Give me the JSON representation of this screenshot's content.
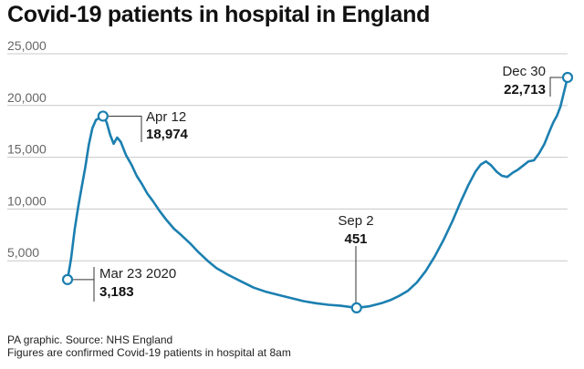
{
  "title": "Covid-19 patients in hospital in England",
  "footer": {
    "source": "PA graphic. Source: NHS England",
    "note": "Figures are confirmed Covid-19 patients in hospital at 8am"
  },
  "colors": {
    "line": "#1b7fb0",
    "grid": "#c8c8c8",
    "axis_text": "#666666",
    "annotation_line": "#333333"
  },
  "chart_data": {
    "type": "line",
    "title": "Covid-19 patients in hospital in England",
    "xlabel": "",
    "ylabel": "",
    "ylim": [
      0,
      25000
    ],
    "yticks": [
      5000,
      10000,
      15000,
      20000,
      25000
    ],
    "ytick_labels": [
      "5,000",
      "10,000",
      "15,000",
      "20,000",
      "25,000"
    ],
    "grid": true,
    "x_start_date": "2020-03-23",
    "x_end_date": "2020-12-30",
    "x": [
      "2020-03-23",
      "2020-03-25",
      "2020-03-27",
      "2020-03-29",
      "2020-03-31",
      "2020-04-02",
      "2020-04-04",
      "2020-04-06",
      "2020-04-08",
      "2020-04-10",
      "2020-04-12",
      "2020-04-14",
      "2020-04-16",
      "2020-04-18",
      "2020-04-20",
      "2020-04-22",
      "2020-04-25",
      "2020-04-28",
      "2020-05-01",
      "2020-05-04",
      "2020-05-07",
      "2020-05-10",
      "2020-05-14",
      "2020-05-18",
      "2020-05-22",
      "2020-05-26",
      "2020-05-31",
      "2020-06-05",
      "2020-06-10",
      "2020-06-15",
      "2020-06-22",
      "2020-06-29",
      "2020-07-06",
      "2020-07-13",
      "2020-07-20",
      "2020-07-27",
      "2020-08-03",
      "2020-08-10",
      "2020-08-17",
      "2020-08-24",
      "2020-09-02",
      "2020-09-09",
      "2020-09-16",
      "2020-09-21",
      "2020-09-26",
      "2020-10-01",
      "2020-10-06",
      "2020-10-11",
      "2020-10-16",
      "2020-10-21",
      "2020-10-26",
      "2020-10-31",
      "2020-11-04",
      "2020-11-08",
      "2020-11-11",
      "2020-11-14",
      "2020-11-17",
      "2020-11-20",
      "2020-11-23",
      "2020-11-26",
      "2020-11-29",
      "2020-12-02",
      "2020-12-05",
      "2020-12-08",
      "2020-12-11",
      "2020-12-14",
      "2020-12-17",
      "2020-12-20",
      "2020-12-22",
      "2020-12-24",
      "2020-12-26",
      "2020-12-28",
      "2020-12-30"
    ],
    "series": [
      {
        "values": [
          3183,
          5200,
          8000,
          10200,
          12100,
          14000,
          16200,
          17800,
          18600,
          18800,
          18974,
          18400,
          17200,
          16300,
          16900,
          16500,
          15200,
          14300,
          13200,
          12400,
          11500,
          10800,
          9800,
          8900,
          8100,
          7500,
          6700,
          5800,
          5000,
          4300,
          3600,
          3000,
          2400,
          2000,
          1700,
          1400,
          1100,
          900,
          750,
          650,
          451,
          600,
          900,
          1200,
          1600,
          2100,
          2900,
          4000,
          5400,
          7000,
          8800,
          10800,
          12300,
          13600,
          14300,
          14600,
          14200,
          13600,
          13200,
          13100,
          13500,
          13800,
          14200,
          14600,
          14700,
          15400,
          16300,
          17600,
          18400,
          19000,
          19900,
          21300,
          22713
        ]
      }
    ],
    "annotations": [
      {
        "date_label": "Apr 12",
        "value_label": "18,974"
      },
      {
        "date_label": "Mar 23 2020",
        "value_label": "3,183"
      },
      {
        "date_label": "Sep 2",
        "value_label": "451"
      },
      {
        "date_label": "Dec 30",
        "value_label": "22,713"
      }
    ]
  }
}
